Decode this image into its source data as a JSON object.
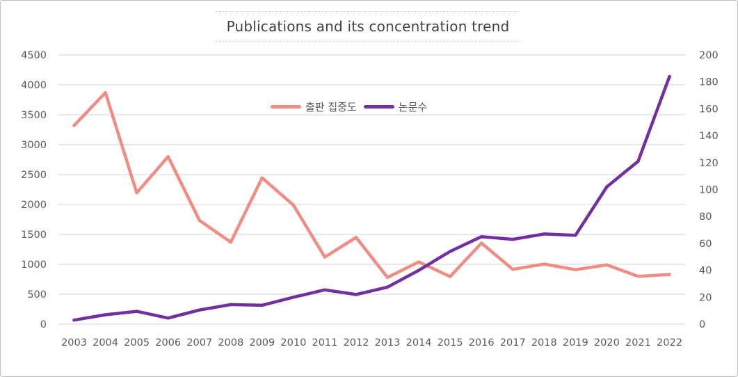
{
  "chart_data": {
    "type": "line",
    "title": "Publications and its concentration trend",
    "categories": [
      "2003",
      "2004",
      "2005",
      "2006",
      "2007",
      "2008",
      "2009",
      "2010",
      "2011",
      "2012",
      "2013",
      "2014",
      "2015",
      "2016",
      "2017",
      "2018",
      "2019",
      "2020",
      "2021",
      "2022"
    ],
    "series": [
      {
        "name": "출판 집중도",
        "axis": "left",
        "color": "#F08C84",
        "values": [
          3320,
          3870,
          2195,
          2800,
          1735,
          1370,
          2445,
          1990,
          1120,
          1450,
          780,
          1040,
          795,
          1355,
          915,
          1005,
          910,
          990,
          800,
          830
        ]
      },
      {
        "name": "논문수",
        "axis": "right",
        "color": "#7030A0",
        "values": [
          3,
          7,
          9.5,
          4.5,
          10.5,
          14.5,
          14,
          20,
          25.5,
          22,
          27.5,
          40,
          54,
          65,
          63,
          67,
          66,
          102,
          121,
          184
        ]
      }
    ],
    "y_left": {
      "min": 0,
      "max": 4500,
      "step": 500,
      "ticks": [
        "0",
        "500",
        "1000",
        "1500",
        "2000",
        "2500",
        "3000",
        "3500",
        "4000",
        "4500"
      ]
    },
    "y_right": {
      "min": 0,
      "max": 200,
      "step": 20,
      "ticks": [
        "0",
        "20",
        "40",
        "60",
        "80",
        "100",
        "120",
        "140",
        "160",
        "180",
        "200"
      ]
    },
    "grid": "horizontal",
    "legend_position": "top-center"
  }
}
